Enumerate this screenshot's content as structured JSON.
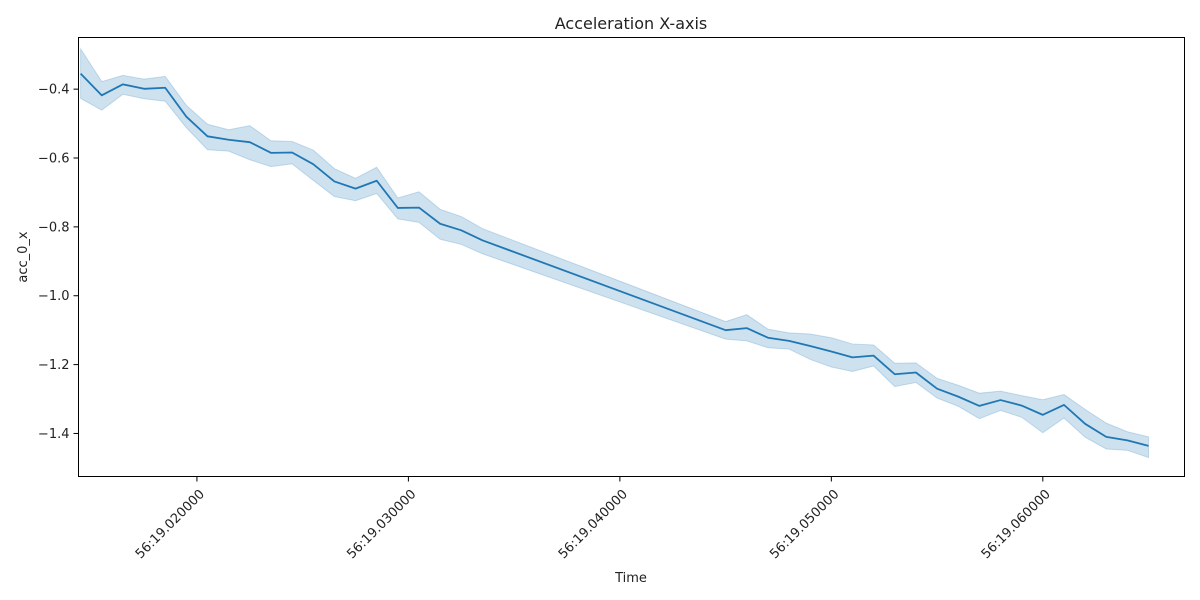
{
  "chart_data": {
    "type": "line",
    "title": "Acceleration X-axis",
    "xlabel": "Time",
    "ylabel": "acc_0_x",
    "x_unit": "milliseconds past 56:19",
    "x_ticks": [
      {
        "value": 20,
        "label": "56:19.020000"
      },
      {
        "value": 30,
        "label": "56:19.030000"
      },
      {
        "value": 40,
        "label": "56:19.040000"
      },
      {
        "value": 50,
        "label": "56:19.050000"
      },
      {
        "value": 60,
        "label": "56:19.060000"
      }
    ],
    "y_ticks": [
      {
        "value": -0.4,
        "label": "−0.4"
      },
      {
        "value": -0.6,
        "label": "−0.6"
      },
      {
        "value": -0.8,
        "label": "−0.8"
      },
      {
        "value": -1.0,
        "label": "−1.0"
      },
      {
        "value": -1.2,
        "label": "−1.2"
      },
      {
        "value": -1.4,
        "label": "−1.4"
      }
    ],
    "xlim": [
      14.4,
      66.7
    ],
    "ylim": [
      -1.525,
      -0.25
    ],
    "grid": false,
    "colors": {
      "line": "#1f77b4",
      "band": "#1f77b4"
    },
    "series": [
      {
        "x": [
          14.5,
          15.5,
          16.5,
          17.5,
          18.5,
          19.5,
          20.5,
          21.5,
          22.5,
          23.5,
          24.5,
          25.5,
          26.5,
          27.5,
          28.5,
          29.5,
          30.5,
          31.5,
          32.5,
          33.5,
          45.0,
          46.0,
          47.0,
          48.0,
          49.0,
          50.0,
          51.0,
          52.0,
          53.0,
          54.0,
          55.0,
          56.0,
          57.0,
          58.0,
          59.0,
          60.0,
          61.0,
          62.0,
          63.0,
          64.0,
          65.0
        ],
        "y": [
          -0.355,
          -0.418,
          -0.386,
          -0.399,
          -0.396,
          -0.48,
          -0.537,
          -0.547,
          -0.554,
          -0.585,
          -0.584,
          -0.618,
          -0.668,
          -0.689,
          -0.666,
          -0.745,
          -0.744,
          -0.791,
          -0.81,
          -0.839,
          -1.1,
          -1.094,
          -1.122,
          -1.131,
          -1.146,
          -1.162,
          -1.179,
          -1.174,
          -1.228,
          -1.223,
          -1.27,
          -1.293,
          -1.32,
          -1.303,
          -1.319,
          -1.346,
          -1.317,
          -1.372,
          -1.41,
          -1.42,
          -1.436
        ],
        "ci_upper": [
          -0.283,
          -0.378,
          -0.36,
          -0.371,
          -0.363,
          -0.447,
          -0.502,
          -0.518,
          -0.506,
          -0.55,
          -0.552,
          -0.577,
          -0.631,
          -0.659,
          -0.627,
          -0.716,
          -0.698,
          -0.749,
          -0.77,
          -0.805,
          -1.075,
          -1.055,
          -1.097,
          -1.108,
          -1.111,
          -1.122,
          -1.14,
          -1.143,
          -1.196,
          -1.195,
          -1.24,
          -1.26,
          -1.283,
          -1.277,
          -1.29,
          -1.302,
          -1.287,
          -1.33,
          -1.37,
          -1.395,
          -1.41
        ],
        "ci_lower": [
          -0.427,
          -0.461,
          -0.415,
          -0.428,
          -0.435,
          -0.512,
          -0.576,
          -0.58,
          -0.605,
          -0.625,
          -0.617,
          -0.665,
          -0.712,
          -0.724,
          -0.703,
          -0.777,
          -0.787,
          -0.836,
          -0.851,
          -0.878,
          -1.126,
          -1.131,
          -1.151,
          -1.155,
          -1.185,
          -1.207,
          -1.22,
          -1.204,
          -1.264,
          -1.252,
          -1.297,
          -1.321,
          -1.357,
          -1.333,
          -1.353,
          -1.398,
          -1.355,
          -1.411,
          -1.445,
          -1.449,
          -1.47
        ]
      }
    ]
  }
}
